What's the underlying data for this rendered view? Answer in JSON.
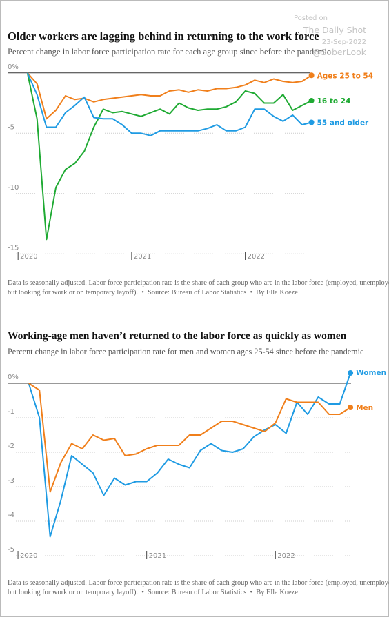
{
  "watermark": [
    "Posted on",
    "The Daily Shot",
    "23-Sep-2022",
    "@SoberLook"
  ],
  "chart_data": [
    {
      "type": "line",
      "title": "Older workers are lagging behind in returning to the work force",
      "subtitle": "Percent change in labor force participation rate for each age group since before the pandemic",
      "note": "Data is seasonally adjusted. Labor force participation rate is the share of each group who are in the labor force (employed, unemployed but looking for work or on temporary layoff).",
      "source": "Source: Bureau of Labor Statistics",
      "byline": "By Ella Koeze",
      "x": [
        2020.083,
        2020.167,
        2020.25,
        2020.333,
        2020.417,
        2020.5,
        2020.583,
        2020.667,
        2020.75,
        2020.833,
        2020.917,
        2021,
        2021.083,
        2021.167,
        2021.25,
        2021.333,
        2021.417,
        2021.5,
        2021.583,
        2021.667,
        2021.75,
        2021.833,
        2021.917,
        2022,
        2022.083,
        2022.167,
        2022.25,
        2022.333,
        2022.417,
        2022.5,
        2022.583
      ],
      "xlim": [
        2019.92,
        2022.64
      ],
      "xticks": [
        2020,
        2021,
        2022
      ],
      "ylim": [
        -15.5,
        0.5
      ],
      "yticks": [
        {
          "value": 0,
          "label": "0%"
        },
        -5,
        -10,
        -15
      ],
      "grid": true,
      "series": [
        {
          "name": "Ages 25 to 54",
          "color": "#f07f1b",
          "values": [
            0,
            -0.9,
            -3.8,
            -3.1,
            -1.9,
            -2.2,
            -2.1,
            -2.4,
            -2.2,
            -2.1,
            -2.0,
            -1.9,
            -1.8,
            -1.9,
            -1.9,
            -1.5,
            -1.4,
            -1.6,
            -1.4,
            -1.5,
            -1.3,
            -1.3,
            -1.2,
            -1.0,
            -0.6,
            -0.8,
            -0.5,
            -0.7,
            -0.8,
            -0.7,
            -0.2
          ]
        },
        {
          "name": "16 to 24",
          "color": "#1faa33",
          "values": [
            0,
            -3.8,
            -13.8,
            -9.5,
            -8.0,
            -7.5,
            -6.5,
            -4.5,
            -3.0,
            -3.3,
            -3.2,
            -3.4,
            -3.6,
            -3.3,
            -3.0,
            -3.4,
            -2.5,
            -2.9,
            -3.1,
            -3.0,
            -3.0,
            -2.8,
            -2.4,
            -1.5,
            -1.7,
            -2.5,
            -2.5,
            -1.8,
            -3.1,
            -2.7,
            -2.3
          ]
        },
        {
          "name": "55 and older",
          "color": "#1f9be3",
          "values": [
            0,
            -1.8,
            -4.5,
            -4.5,
            -3.3,
            -2.7,
            -2.0,
            -3.7,
            -3.8,
            -3.8,
            -4.3,
            -5.0,
            -5.0,
            -5.2,
            -4.8,
            -4.8,
            -4.8,
            -4.8,
            -4.8,
            -4.6,
            -4.3,
            -4.8,
            -4.8,
            -4.5,
            -3.0,
            -3.0,
            -3.6,
            -4.0,
            -3.5,
            -4.3,
            -4.1
          ]
        }
      ]
    },
    {
      "type": "line",
      "title": "Working-age men haven’t returned to the labor force as quickly as women",
      "subtitle": "Percent change in labor force participation rate for men and women ages 25-54 since before the pandemic",
      "note": "Data is seasonally adjusted. Labor force participation rate is the share of each group who are in the labor force (employed, unemployed but looking for work or on temporary layoff).",
      "source": "Source: Bureau of Labor Statistics",
      "byline": "By Ella Koeze",
      "x": [
        2020.083,
        2020.167,
        2020.25,
        2020.333,
        2020.417,
        2020.5,
        2020.583,
        2020.667,
        2020.75,
        2020.833,
        2020.917,
        2021,
        2021.083,
        2021.167,
        2021.25,
        2021.333,
        2021.417,
        2021.5,
        2021.583,
        2021.667,
        2021.75,
        2021.833,
        2021.917,
        2022,
        2022.083,
        2022.167,
        2022.25,
        2022.333,
        2022.417,
        2022.5,
        2022.583
      ],
      "xlim": [
        2019.93,
        2022.62
      ],
      "xticks": [
        2020,
        2021,
        2022
      ],
      "ylim": [
        -5.1,
        0.35
      ],
      "yticks": [
        {
          "value": 0,
          "label": "0%"
        },
        -1,
        -2,
        -3,
        -4,
        -5
      ],
      "grid": true,
      "series": [
        {
          "name": "Women",
          "color": "#1f9be3",
          "values": [
            0,
            -1.0,
            -4.45,
            -3.4,
            -2.1,
            -2.35,
            -2.6,
            -3.25,
            -2.75,
            -2.95,
            -2.85,
            -2.85,
            -2.6,
            -2.2,
            -2.35,
            -2.45,
            -1.95,
            -1.75,
            -1.95,
            -2.0,
            -1.9,
            -1.55,
            -1.35,
            -1.2,
            -1.45,
            -0.55,
            -0.9,
            -0.4,
            -0.6,
            -0.6,
            0.3
          ]
        },
        {
          "name": "Men",
          "color": "#f07f1b",
          "values": [
            0,
            -0.2,
            -3.15,
            -2.3,
            -1.75,
            -1.9,
            -1.5,
            -1.65,
            -1.6,
            -2.1,
            -2.05,
            -1.9,
            -1.8,
            -1.8,
            -1.8,
            -1.5,
            -1.5,
            -1.3,
            -1.1,
            -1.1,
            -1.2,
            -1.3,
            -1.4,
            -1.15,
            -0.45,
            -0.55,
            -0.55,
            -0.55,
            -0.9,
            -0.9,
            -0.7
          ]
        }
      ]
    }
  ]
}
